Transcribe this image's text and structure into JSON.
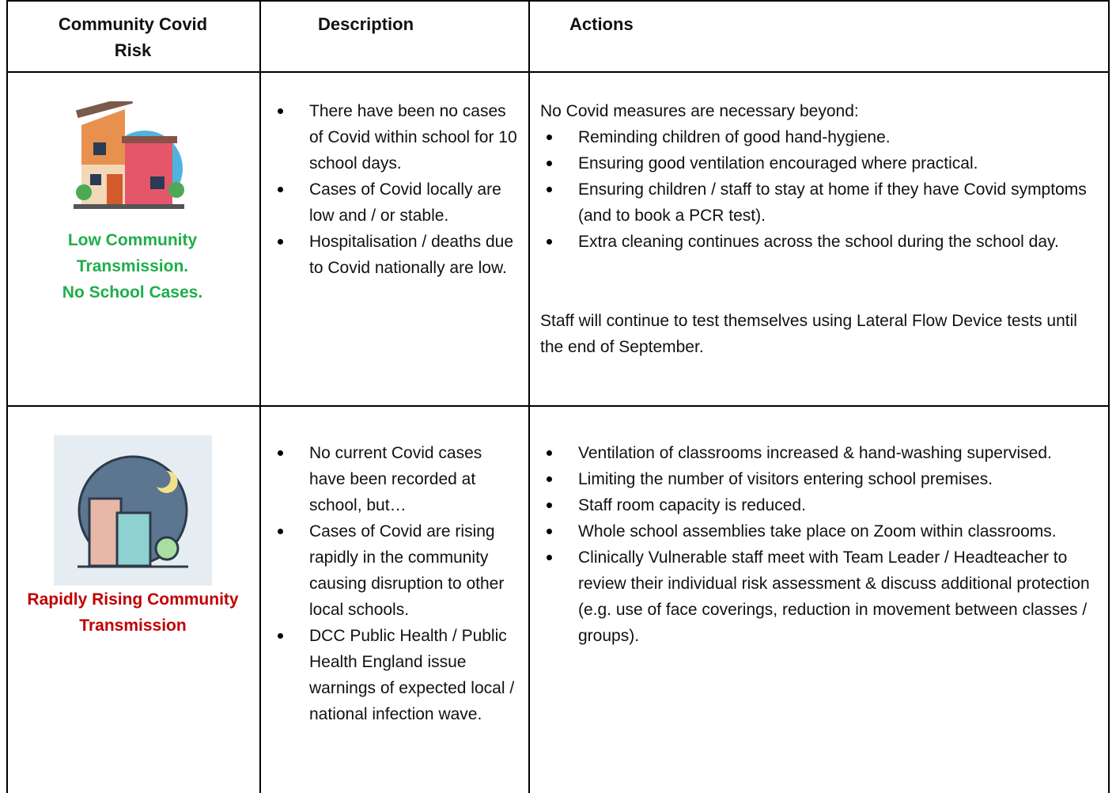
{
  "table": {
    "header": [
      "Community Covid Risk",
      "Description",
      "Actions"
    ],
    "rows": [
      {
        "risk": [
          "Low Community Transmission.",
          "No School Cases."
        ],
        "description": [
          "There have been no cases of Covid within school for 10 school days.",
          "Cases of Covid locally are low and / or stable.",
          "Hospitalisation / deaths due to Covid nationally are low."
        ],
        "actions_intro": "No Covid measures are necessary beyond:",
        "actions": [
          "Reminding children of good hand-hygiene.",
          "Ensuring good ventilation encouraged where practical.",
          "Ensuring children / staff to stay at home if they have Covid symptoms (and to book a PCR test).",
          "Extra cleaning continues across the school during the school day."
        ],
        "actions_note": "Staff will continue to test themselves using Lateral Flow Device tests until the end of September."
      },
      {
        "risk": [
          "Rapidly Rising Community Transmission"
        ],
        "description": [
          "No current Covid cases have been recorded at school, but…",
          "Cases of Covid are rising rapidly in the community causing disruption to other local schools.",
          "DCC Public Health / Public Health England issue warnings of expected local / national infection wave."
        ],
        "actions": [
          "Ventilation of classrooms increased & hand-washing supervised.",
          "Limiting the number of visitors entering school premises.",
          "Staff room capacity is reduced.",
          "Whole school assemblies take place on Zoom within classrooms.",
          "Clinically Vulnerable staff meet with Team Leader / Headteacher to review their individual risk assessment & discuss additional protection (e.g. use of face coverings, reduction in movement between classes / groups)."
        ]
      }
    ]
  }
}
